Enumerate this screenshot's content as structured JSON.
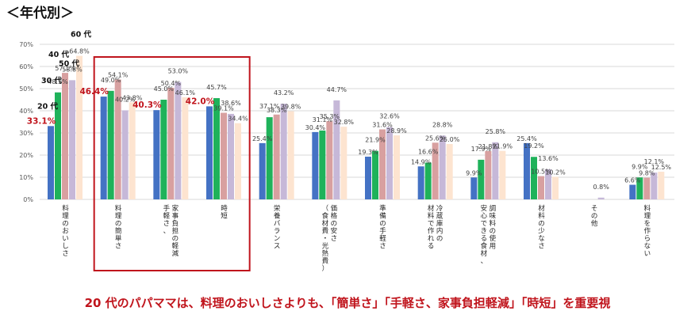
{
  "page_title": "＜年代別＞",
  "footer_caption": "20 代のパパママは、料理のおいしさよりも、「簡単さ」「手軽さ、家事負担軽減」「時短」を重要視",
  "colors": {
    "series_20s": "#4472c4",
    "series_30s": "#1fb25a",
    "series_40s": "#d8a0a0",
    "series_50s": "#c6b8d8",
    "series_60s": "#fde4d0",
    "highlight_text": "#c0141c",
    "highlight_box": "#c0141c",
    "gridline": "#d9d9d9"
  },
  "chart_data": {
    "type": "bar",
    "categories": [
      "料理のおいしさ",
      "料理の簡単さ",
      "手軽さ、家事負担の軽減",
      "時短",
      "栄養バランス",
      "価格の安さ（食材費・光熱費）",
      "準備の手軽さ",
      "冷蔵庫内の材料で作れる",
      "安心できる食材、調味料の使用",
      "材料の少なさ",
      "その他",
      "料理を作らない"
    ],
    "series": [
      {
        "name": "20 代",
        "values": [
          33.1,
          46.4,
          40.3,
          42.0,
          25.4,
          30.4,
          19.3,
          14.9,
          9.9,
          25.4,
          null,
          6.6
        ]
      },
      {
        "name": "30 代",
        "values": [
          48.3,
          49.0,
          45.0,
          45.7,
          37.1,
          31.1,
          21.9,
          16.6,
          17.9,
          19.2,
          null,
          9.9
        ]
      },
      {
        "name": "40 代",
        "values": [
          57.1,
          54.1,
          50.4,
          39.1,
          38.3,
          35.3,
          31.6,
          25.6,
          21.8,
          10.5,
          null,
          9.8
        ]
      },
      {
        "name": "50 代",
        "values": [
          53.8,
          40.2,
          53.0,
          38.6,
          43.2,
          44.7,
          32.6,
          28.8,
          25.8,
          13.6,
          0.8,
          12.1
        ]
      },
      {
        "name": "60 代",
        "values": [
          64.8,
          43.8,
          46.1,
          34.4,
          39.8,
          32.8,
          28.9,
          25.0,
          21.9,
          10.2,
          null,
          12.5
        ]
      }
    ],
    "highlighted_labels": [
      {
        "category": "料理のおいしさ",
        "series": "20 代"
      },
      {
        "category": "料理の簡単さ",
        "series": "20 代"
      },
      {
        "category": "手軽さ、家事負担の軽減",
        "series": "20 代"
      },
      {
        "category": "時短",
        "series": "20 代"
      }
    ],
    "highlight_box_categories": [
      "料理の簡単さ",
      "手軽さ、家事負担の軽減",
      "時短"
    ],
    "ylim": [
      0,
      70
    ],
    "yticks": [
      0,
      10,
      20,
      30,
      40,
      50,
      60,
      70
    ],
    "ytick_suffix": "%",
    "value_suffix": "%",
    "xlabel": "",
    "ylabel": "",
    "grid": true,
    "legend": "inline labels on first category"
  }
}
